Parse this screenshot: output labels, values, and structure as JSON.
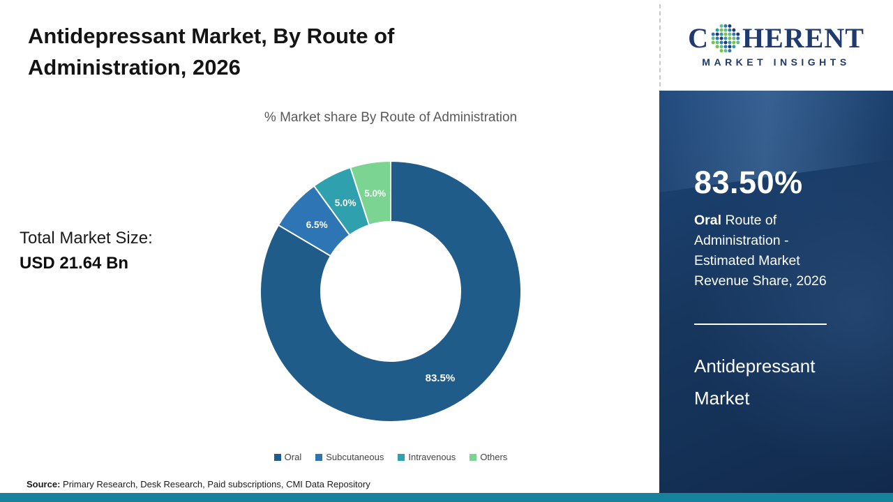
{
  "header": {
    "title_line1": "Antidepressant Market, By Route of",
    "title_line2": "Administration, 2026"
  },
  "left": {
    "total_market_label": "Total Market Size:",
    "total_market_value": "USD 21.64 Bn"
  },
  "source": {
    "label": "Source:",
    "text": " Primary Research, Desk Research, Paid subscriptions, CMI Data Repository"
  },
  "chart_data": {
    "type": "pie",
    "donut": true,
    "title": "% Market share By Route of Administration",
    "categories": [
      "Oral",
      "Subcutaneous",
      "Intravenous",
      "Others"
    ],
    "values": [
      83.5,
      6.5,
      5.0,
      5.0
    ],
    "slice_labels": [
      "83.5%",
      "6.5%",
      "5.0%",
      "5.0%"
    ],
    "colors": [
      "#1F5C8A",
      "#2E75B6",
      "#2FA0AE",
      "#7BD492"
    ],
    "legend_position": "bottom",
    "start_angle_deg": 0,
    "total_market_size": "USD 21.64 Bn"
  },
  "sidebar": {
    "logo": {
      "prefix": "C",
      "rest": "HERENT",
      "subtitle": "MARKET INSIGHTS"
    },
    "stat_value": "83.50%",
    "stat_bold": "Oral",
    "stat_text": " Route of Administration - Estimated Market Revenue Share, 2026",
    "panel_line1": "Antidepressant",
    "panel_line2": "Market"
  }
}
